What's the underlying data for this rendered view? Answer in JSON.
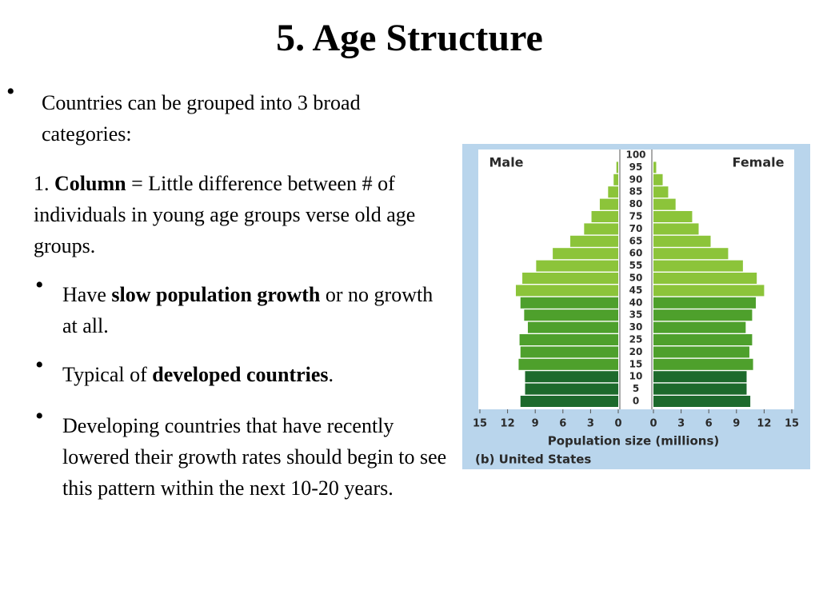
{
  "slide": {
    "title": "5. Age Structure",
    "intro": "Countries can be grouped into 3 broad categories:",
    "point": {
      "number": "1.",
      "term": "Column",
      "rest": "= Little difference between # of individuals in young age groups verse old age groups."
    },
    "bullets": [
      {
        "before": "Have",
        "bold": "slow population growth",
        "after": "or no growth at all."
      },
      {
        "before": "Typical of",
        "bold": "developed countries",
        "after": "."
      },
      {
        "text": "Developing countries that have recently lowered their growth rates should begin to see this pattern within the next 10-20 years."
      }
    ]
  },
  "chart_data": {
    "type": "pyramid",
    "caption": "(b) United States",
    "x_label": "Population size (millions)",
    "categories": [
      "0",
      "5",
      "10",
      "15",
      "20",
      "25",
      "30",
      "35",
      "40",
      "45",
      "50",
      "55",
      "60",
      "65",
      "70",
      "75",
      "80",
      "85",
      "90",
      "95",
      "100"
    ],
    "series": [
      {
        "name": "Male",
        "values": [
          10.6,
          10.1,
          10.1,
          10.8,
          10.6,
          10.7,
          9.8,
          10.2,
          10.6,
          11.1,
          10.4,
          8.9,
          7.1,
          5.2,
          3.7,
          2.9,
          2.0,
          1.1,
          0.5,
          0.2,
          null
        ]
      },
      {
        "name": "Female",
        "values": [
          10.5,
          10.1,
          10.1,
          10.8,
          10.4,
          10.7,
          10.0,
          10.7,
          11.1,
          12.0,
          11.2,
          9.7,
          8.1,
          6.2,
          4.9,
          4.2,
          2.4,
          1.6,
          1.0,
          0.3,
          null
        ]
      }
    ],
    "bar_colors": [
      "#1d6a2c",
      "#1d6a2c",
      "#1d6a2c",
      "#4ea02c",
      "#4ea02c",
      "#4ea02c",
      "#4ea02c",
      "#4ea02c",
      "#4ea02c",
      "#8cc43a",
      "#8cc43a",
      "#8cc43a",
      "#8cc43a",
      "#8cc43a",
      "#8cc43a",
      "#8cc43a",
      "#8cc43a",
      "#8cc43a",
      "#8cc43a",
      "#8cc43a",
      null
    ],
    "xlim": [
      0,
      15
    ],
    "xticks": [
      0,
      3,
      6,
      9,
      12,
      15
    ]
  }
}
